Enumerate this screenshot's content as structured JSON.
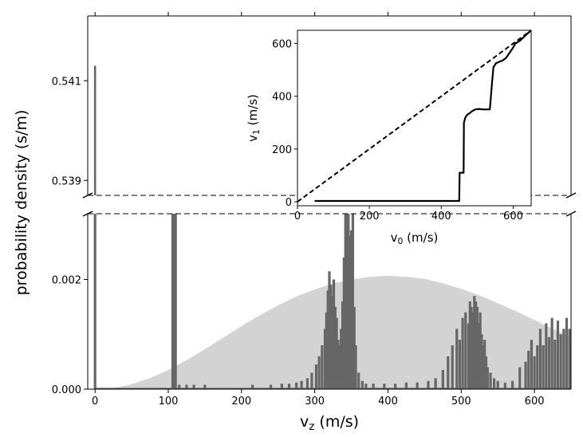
{
  "chart_data": [
    {
      "type": "area",
      "name": "main",
      "xlabel_base": "v",
      "xlabel_sub": "z",
      "xlabel_unit": " (m/s)",
      "ylabel": "probability density (s/m)",
      "xlim": [
        -10,
        650
      ],
      "x_ticks": [
        0,
        100,
        200,
        300,
        400,
        500,
        600
      ],
      "x_tick_labels": [
        "0",
        "100",
        "200",
        "300",
        "400",
        "500",
        "600"
      ],
      "broken_y_axis": true,
      "upper_panel": {
        "ylim": [
          0.5387,
          0.5423
        ],
        "y_ticks": [
          0.539,
          0.541
        ],
        "y_tick_labels": [
          "0.539",
          "0.541"
        ]
      },
      "lower_panel": {
        "ylim": [
          0.0,
          0.0032
        ],
        "y_ticks": [
          0.0,
          0.002
        ],
        "y_tick_labels": [
          "0.000",
          "0.002"
        ]
      },
      "series": [
        {
          "name": "Maxwell-Boltzmann reference",
          "kind": "filled-curve",
          "color": "#d3d3d3",
          "x": [
            0,
            25,
            50,
            75,
            100,
            125,
            150,
            175,
            200,
            225,
            250,
            275,
            300,
            325,
            350,
            375,
            400,
            425,
            450,
            475,
            500,
            525,
            550,
            575,
            600,
            625,
            650
          ],
          "y": [
            0.0,
            2e-05,
            9e-05,
            0.0002,
            0.00035,
            0.00053,
            0.00073,
            0.00094,
            0.00115,
            0.00135,
            0.00153,
            0.00169,
            0.00182,
            0.00193,
            0.002,
            0.00205,
            0.00207,
            0.00205,
            0.00201,
            0.00193,
            0.00183,
            0.00171,
            0.00157,
            0.00142,
            0.00126,
            0.0011,
            0.00095
          ]
        },
        {
          "name": "simulated distribution",
          "kind": "spikes",
          "color": "#666666",
          "x": [
            0,
            106,
            108,
            110,
            115,
            125,
            135,
            150,
            215,
            240,
            255,
            265,
            275,
            282,
            290,
            296,
            302,
            306,
            310,
            314,
            316,
            318,
            320,
            322,
            324,
            326,
            328,
            330,
            332,
            334,
            336,
            338,
            340,
            342,
            344,
            346,
            348,
            350,
            352,
            354,
            356,
            360,
            365,
            370,
            380,
            395,
            410,
            425,
            440,
            455,
            465,
            475,
            482,
            488,
            494,
            498,
            502,
            506,
            510,
            512,
            514,
            516,
            518,
            520,
            522,
            524,
            526,
            528,
            530,
            532,
            534,
            536,
            540,
            545,
            550,
            560,
            570,
            580,
            588,
            592,
            596,
            600,
            604,
            608,
            612,
            616,
            620,
            624,
            628,
            632,
            636,
            640,
            644,
            648
          ],
          "y": [
            0.5413,
            0.004,
            0.004,
            0.004,
            8e-05,
            8e-05,
            8e-05,
            8e-05,
            8e-05,
            8e-05,
            0.0001,
            0.0001,
            0.00012,
            0.00015,
            0.0002,
            0.0003,
            0.00045,
            0.0006,
            0.0008,
            0.0011,
            0.0014,
            0.0018,
            0.00215,
            0.0019,
            0.0017,
            0.002,
            0.0015,
            0.0013,
            0.0009,
            0.0008,
            0.0011,
            0.0016,
            0.0024,
            0.0032,
            0.0035,
            0.0034,
            0.0028,
            0.0029,
            0.0034,
            0.0015,
            0.0008,
            0.0003,
            0.00015,
            0.0001,
            0.0001,
            0.0001,
            0.0001,
            0.00012,
            0.00012,
            0.00015,
            0.0002,
            0.00035,
            0.0006,
            0.0008,
            0.0011,
            0.0009,
            0.0013,
            0.0014,
            0.0012,
            0.0016,
            0.0015,
            0.0014,
            0.0017,
            0.0016,
            0.0015,
            0.0012,
            0.0014,
            0.001,
            0.0008,
            0.0009,
            0.0006,
            0.0004,
            0.0003,
            0.0002,
            0.00015,
            0.00012,
            0.00015,
            0.0004,
            0.0005,
            0.0007,
            0.0009,
            0.0006,
            0.0008,
            0.0011,
            0.0008,
            0.0012,
            0.00095,
            0.0013,
            0.0009,
            0.00125,
            0.001,
            0.0011,
            0.0013,
            0.0011
          ]
        }
      ]
    },
    {
      "type": "line",
      "name": "inset",
      "xlabel_base": "v",
      "xlabel_sub": "0",
      "xlabel_unit": " (m/s)",
      "ylabel_base": "v",
      "ylabel_sub": "1",
      "ylabel_unit": " (m/s)",
      "xlim": [
        0,
        650
      ],
      "ylim": [
        -15,
        650
      ],
      "x_ticks": [
        0,
        200,
        400,
        600
      ],
      "x_tick_labels": [
        "0",
        "200",
        "400",
        "600"
      ],
      "y_ticks": [
        0,
        200,
        400,
        600
      ],
      "y_tick_labels": [
        "0",
        "200",
        "400",
        "600"
      ],
      "series": [
        {
          "name": "identity v1 = v0",
          "style": "dashed",
          "x": [
            0,
            650
          ],
          "y": [
            0,
            650
          ]
        },
        {
          "name": "v1 vs v0",
          "style": "solid",
          "x": [
            50,
            50,
            450,
            451,
            462,
            463,
            467,
            472,
            478,
            485,
            495,
            505,
            515,
            535,
            541,
            545,
            552,
            560,
            570,
            580,
            590,
            600,
            606,
            612,
            620,
            630,
            640,
            650
          ],
          "y": [
            0,
            3,
            3,
            110,
            110,
            300,
            320,
            330,
            335,
            343,
            350,
            352,
            350,
            350,
            450,
            510,
            525,
            530,
            535,
            545,
            565,
            585,
            600,
            605,
            612,
            625,
            638,
            650
          ]
        }
      ]
    }
  ]
}
